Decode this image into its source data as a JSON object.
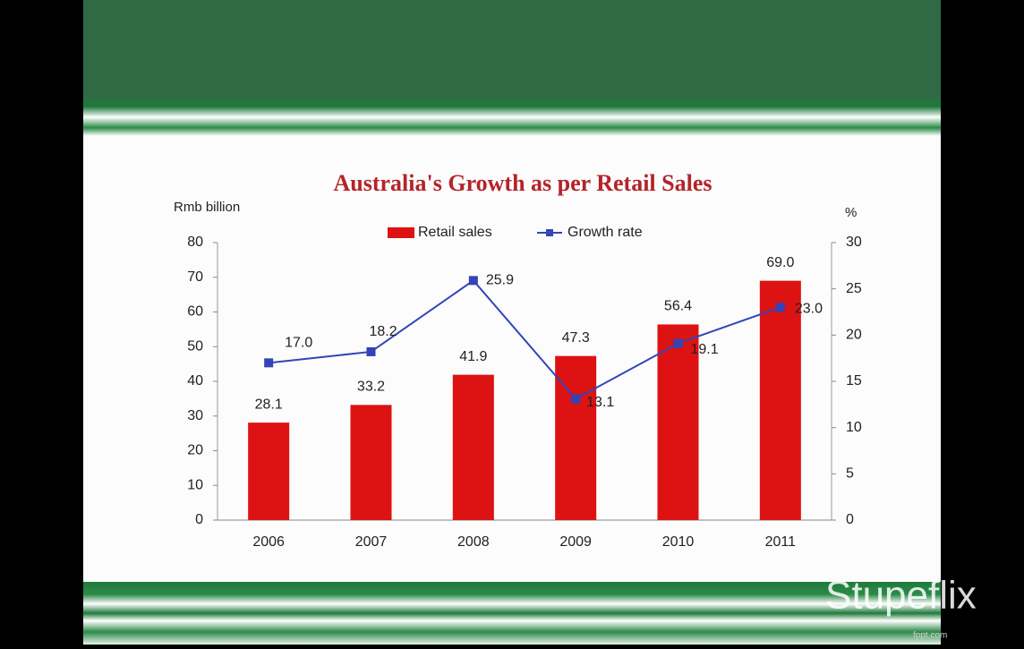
{
  "chart_data": {
    "type": "bar",
    "title": "Australia's Growth as per Retail Sales",
    "ylabel": "Rmb billion",
    "y2label": "%",
    "categories": [
      "2006",
      "2007",
      "2008",
      "2009",
      "2010",
      "2011"
    ],
    "series": [
      {
        "name": "Retail sales",
        "type": "bar",
        "color": "#dd1212",
        "axis": "y",
        "values": [
          28.1,
          33.2,
          41.9,
          47.3,
          56.4,
          69.0
        ],
        "value_labels": [
          "28.1",
          "33.2",
          "41.9",
          "47.3",
          "56.4",
          "69.0"
        ]
      },
      {
        "name": "Growth rate",
        "type": "line",
        "color": "#3344b8",
        "axis": "y2",
        "values": [
          17.0,
          18.2,
          25.9,
          13.1,
          19.1,
          23.0
        ],
        "value_labels": [
          "17.0",
          "18.2",
          "25.9",
          "13.1",
          "19.1",
          "23.0"
        ]
      }
    ],
    "ylim": [
      0,
      80
    ],
    "yticks": [
      0,
      10,
      20,
      30,
      40,
      50,
      60,
      70,
      80
    ],
    "y2lim": [
      0,
      30
    ],
    "y2ticks": [
      0,
      5,
      10,
      15,
      20,
      25,
      30
    ],
    "grid": false,
    "legend": "top"
  },
  "watermark": "Stupeflix",
  "source": "fppt.com"
}
